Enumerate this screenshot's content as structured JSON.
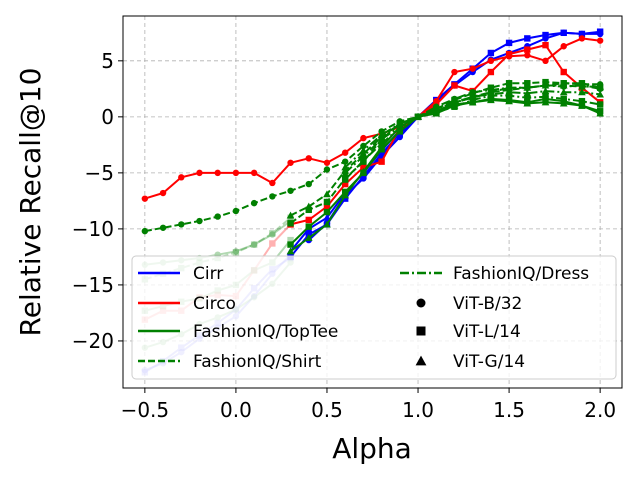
{
  "chart_data": {
    "type": "line",
    "title": "",
    "xlabel": "Alpha",
    "ylabel": "Relative Recall@10",
    "xlim": [
      -0.62,
      2.12
    ],
    "ylim": [
      -24.2,
      9.0
    ],
    "xticks": [
      -0.5,
      0.0,
      0.5,
      1.0,
      1.5,
      2.0
    ],
    "xtick_labels": [
      "−0.5",
      "0.0",
      "0.5",
      "1.0",
      "1.5",
      "2.0"
    ],
    "yticks": [
      -20,
      -15,
      -10,
      -5,
      0,
      5
    ],
    "ytick_labels": [
      "−20",
      "−15",
      "−10",
      "−5",
      "0",
      "5"
    ],
    "grid": true,
    "colors": {
      "Cirr": "#0000ff",
      "Circo": "#ff0000",
      "FashionIQ": "#008000"
    },
    "legend": {
      "placement": "lower-right",
      "entries": [
        {
          "label": "Cirr",
          "kind": "line",
          "color": "#0000ff",
          "dash": "solid"
        },
        {
          "label": "Circo",
          "kind": "line",
          "color": "#ff0000",
          "dash": "solid"
        },
        {
          "label": "FashionIQ/TopTee",
          "kind": "line",
          "color": "#008000",
          "dash": "solid"
        },
        {
          "label": "FashionIQ/Shirt",
          "kind": "line",
          "color": "#008000",
          "dash": "dashed"
        },
        {
          "label": "FashionIQ/Dress",
          "kind": "line",
          "color": "#008000",
          "dash": "dashdot"
        },
        {
          "label": "ViT-B/32",
          "kind": "marker",
          "marker": "circle"
        },
        {
          "label": "ViT-L/14",
          "kind": "marker",
          "marker": "square"
        },
        {
          "label": "ViT-G/14",
          "kind": "marker",
          "marker": "triangle"
        }
      ]
    },
    "series": [
      {
        "name": "Cirr ViT-B/32",
        "color": "#0000ff",
        "dash": "solid",
        "marker": "circle",
        "opacity": 1,
        "x": [
          0.4,
          0.5,
          0.6,
          0.7,
          0.8,
          0.9,
          1.0,
          1.1,
          1.2,
          1.3,
          1.4,
          1.5,
          1.6,
          1.7,
          1.8,
          1.9,
          2.0
        ],
        "y": [
          -11.0,
          -9.5,
          -7.0,
          -5.5,
          -3.5,
          -1.8,
          0.0,
          1.3,
          2.8,
          4.0,
          5.1,
          5.7,
          6.3,
          7.0,
          7.5,
          7.4,
          7.4
        ]
      },
      {
        "name": "Cirr ViT-L/14",
        "color": "#0000ff",
        "dash": "solid",
        "marker": "square",
        "opacity": 1,
        "x": [
          0.3,
          0.4,
          0.5,
          0.6,
          0.7,
          0.8,
          0.9,
          1.0,
          1.1,
          1.2,
          1.3,
          1.4,
          1.5,
          1.6,
          1.7,
          1.8,
          1.9,
          2.0
        ],
        "y": [
          -12.5,
          -10.5,
          -9.6,
          -7.3,
          -5.3,
          -3.3,
          -1.5,
          0.0,
          1.5,
          2.9,
          4.3,
          5.7,
          6.6,
          7.0,
          7.3,
          7.5,
          7.4,
          7.6
        ]
      },
      {
        "name": "Cirr ViT-G/14",
        "color": "#0000ff",
        "dash": "solid",
        "marker": "triangle",
        "opacity": 1,
        "x": [
          0.3,
          0.4,
          0.5,
          0.6,
          0.7,
          0.8,
          0.9,
          1.0
        ],
        "y": [
          -12.0,
          -10.0,
          -9.0,
          -6.8,
          -5.0,
          -3.0,
          -1.2,
          0.0
        ]
      },
      {
        "name": "Cirr faded 1",
        "color": "#0000ff",
        "dash": "solid",
        "marker": "circle",
        "opacity": 0.3,
        "x": [
          -0.5,
          -0.4,
          -0.3,
          -0.2,
          -0.1,
          0.0,
          0.1,
          0.2,
          0.3
        ],
        "y": [
          -22.6,
          -22.0,
          -21.0,
          -19.8,
          -18.8,
          -17.8,
          -16.0,
          -14.0,
          -12.3
        ]
      },
      {
        "name": "Cirr faded 2",
        "color": "#0000ff",
        "dash": "solid",
        "marker": "square",
        "opacity": 0.3,
        "x": [
          -0.5,
          -0.4,
          -0.3,
          -0.2,
          -0.1,
          0.0,
          0.1,
          0.2,
          0.3
        ],
        "y": [
          -22.8,
          -21.8,
          -20.6,
          -19.5,
          -18.4,
          -17.2,
          -15.3,
          -13.6,
          -12.6
        ]
      },
      {
        "name": "Circo ViT-B/32",
        "color": "#ff0000",
        "dash": "solid",
        "marker": "circle",
        "opacity": 1,
        "x": [
          -0.5,
          -0.4,
          -0.3,
          -0.2,
          -0.1,
          0.0,
          0.1,
          0.2,
          0.3,
          0.4,
          0.5,
          0.6,
          0.7,
          0.8,
          0.9,
          1.0,
          1.1,
          1.2,
          1.3,
          1.4,
          1.5,
          1.6,
          1.7,
          1.8,
          1.9,
          2.0
        ],
        "y": [
          -7.3,
          -6.8,
          -5.4,
          -5.0,
          -5.0,
          -5.0,
          -5.0,
          -5.9,
          -4.1,
          -3.7,
          -4.1,
          -3.2,
          -1.9,
          -1.5,
          -0.9,
          0.0,
          1.4,
          4.0,
          4.3,
          5.0,
          5.4,
          5.5,
          5.0,
          6.3,
          7.0,
          6.8
        ]
      },
      {
        "name": "Circo ViT-L/14",
        "color": "#ff0000",
        "dash": "solid",
        "marker": "square",
        "opacity": 1,
        "x": [
          0.3,
          0.4,
          0.5,
          0.6,
          0.7,
          0.8,
          0.9,
          1.0,
          1.1,
          1.2,
          1.3,
          1.4,
          1.5,
          1.6,
          1.7,
          1.8,
          1.9,
          2.0
        ],
        "y": [
          -9.6,
          -9.2,
          -8.0,
          -6.0,
          -4.5,
          -4.0,
          -1.0,
          0.0,
          1.1,
          2.8,
          2.3,
          4.0,
          5.6,
          6.0,
          6.4,
          4.0,
          2.6,
          1.3
        ]
      },
      {
        "name": "Circo faded",
        "color": "#ff0000",
        "dash": "solid",
        "marker": "square",
        "opacity": 0.3,
        "x": [
          -0.5,
          -0.4,
          -0.3,
          -0.2,
          -0.1,
          0.0,
          0.1,
          0.2,
          0.3
        ],
        "y": [
          -18.1,
          -17.3,
          -17.3,
          -16.1,
          -15.9,
          -16.0,
          -13.7,
          -11.3,
          -9.6
        ]
      },
      {
        "name": "FashionIQ/TopTee ViT-L/14",
        "color": "#008000",
        "dash": "solid",
        "marker": "square",
        "opacity": 1,
        "x": [
          0.3,
          0.4,
          0.5,
          0.6,
          0.7,
          0.8,
          0.9,
          1.0,
          1.1,
          1.2,
          1.3,
          1.4,
          1.5,
          1.6,
          1.7,
          1.8,
          1.9,
          2.0
        ],
        "y": [
          -11.4,
          -9.8,
          -8.5,
          -6.7,
          -5.0,
          -2.9,
          -1.3,
          0.0,
          0.5,
          1.1,
          1.3,
          1.6,
          1.5,
          1.3,
          1.6,
          1.4,
          1.0,
          0.5
        ]
      },
      {
        "name": "FashionIQ/TopTee ViT-G/14",
        "color": "#008000",
        "dash": "solid",
        "marker": "triangle",
        "opacity": 1,
        "x": [
          0.3,
          0.4,
          0.5,
          0.6,
          0.7,
          0.8,
          0.9,
          1.0,
          1.1,
          1.2,
          1.3,
          1.4,
          1.5,
          1.6,
          1.7,
          1.8,
          1.9,
          2.0
        ],
        "y": [
          -12.0,
          -10.8,
          -9.6,
          -7.0,
          -4.9,
          -2.7,
          -0.9,
          0.0,
          0.3,
          1.0,
          1.3,
          1.5,
          1.4,
          1.2,
          1.3,
          1.2,
          1.0,
          0.3
        ]
      },
      {
        "name": "FashionIQ/Shirt ViT-B/32",
        "color": "#008000",
        "dash": "dashed",
        "marker": "circle",
        "opacity": 1,
        "x": [
          -0.5,
          -0.4,
          -0.3,
          -0.2,
          -0.1,
          0.0,
          0.1,
          0.2,
          0.3,
          0.4,
          0.5,
          0.6,
          0.7,
          0.8,
          0.9,
          1.0,
          1.1,
          1.2,
          1.3,
          1.4,
          1.5,
          1.6,
          1.7,
          1.8,
          1.9,
          2.0
        ],
        "y": [
          -10.2,
          -9.9,
          -9.6,
          -9.3,
          -8.9,
          -8.4,
          -7.7,
          -7.1,
          -6.6,
          -6.0,
          -4.7,
          -4.0,
          -2.6,
          -1.3,
          -0.4,
          0.0,
          0.7,
          1.3,
          1.7,
          2.2,
          2.4,
          2.6,
          2.8,
          3.0,
          2.9,
          2.9
        ]
      },
      {
        "name": "FashionIQ/Shirt ViT-L/14",
        "color": "#008000",
        "dash": "dashed",
        "marker": "square",
        "opacity": 1,
        "x": [
          0.3,
          0.4,
          0.5,
          0.6,
          0.7,
          0.8,
          0.9,
          1.0,
          1.1,
          1.2,
          1.3,
          1.4,
          1.5,
          1.6,
          1.7,
          1.8,
          1.9,
          2.0
        ],
        "y": [
          -9.5,
          -8.3,
          -7.6,
          -5.5,
          -4.0,
          -2.0,
          -0.6,
          0.0,
          0.7,
          1.5,
          2.1,
          2.6,
          3.0,
          3.0,
          3.1,
          3.0,
          3.0,
          2.6
        ]
      },
      {
        "name": "FashionIQ/Shirt ViT-G/14",
        "color": "#008000",
        "dash": "dashed",
        "marker": "triangle",
        "opacity": 1,
        "x": [
          0.3,
          0.4,
          0.5,
          0.6,
          0.7,
          0.8,
          0.9,
          1.0,
          1.1,
          1.2,
          1.3,
          1.4,
          1.5,
          1.6,
          1.7,
          1.8,
          1.9,
          2.0
        ],
        "y": [
          -8.8,
          -8.0,
          -6.9,
          -4.8,
          -3.3,
          -1.8,
          -0.6,
          0.0,
          0.5,
          1.2,
          1.8,
          2.2,
          2.6,
          2.6,
          2.8,
          2.8,
          2.7,
          2.7
        ]
      },
      {
        "name": "FashionIQ/Dress ViT-B/32",
        "color": "#008000",
        "dash": "dashdot",
        "marker": "circle",
        "opacity": 1,
        "x": [
          0.6,
          0.7,
          0.8,
          0.9,
          1.0,
          1.1,
          1.2,
          1.3,
          1.4,
          1.5,
          1.6,
          1.7,
          1.8,
          1.9,
          2.0
        ],
        "y": [
          -5.0,
          -3.5,
          -2.0,
          -0.9,
          0.0,
          0.9,
          1.6,
          2.2,
          2.4,
          2.6,
          2.6,
          2.8,
          2.7,
          2.8,
          2.5
        ]
      },
      {
        "name": "FashionIQ/Dress ViT-L/14",
        "color": "#008000",
        "dash": "dashdot",
        "marker": "square",
        "opacity": 1,
        "x": [
          0.6,
          0.7,
          0.8,
          0.9,
          1.0,
          1.1,
          1.2,
          1.3,
          1.4,
          1.5,
          1.6,
          1.7,
          1.8,
          1.9,
          2.0
        ],
        "y": [
          -5.6,
          -3.9,
          -2.4,
          -1.0,
          0.0,
          0.4,
          0.9,
          1.5,
          1.9,
          1.9,
          1.7,
          1.8,
          1.6,
          1.4,
          1.1
        ]
      },
      {
        "name": "FashionIQ/Dress ViT-G/14",
        "color": "#008000",
        "dash": "dashdot",
        "marker": "triangle",
        "opacity": 1,
        "x": [
          0.6,
          0.7,
          0.8,
          0.9,
          1.0,
          1.1,
          1.2,
          1.3,
          1.4,
          1.5,
          1.6,
          1.7,
          1.8,
          1.9,
          2.0
        ],
        "y": [
          -4.5,
          -3.0,
          -1.6,
          -0.6,
          0.0,
          0.6,
          1.3,
          1.8,
          2.0,
          2.2,
          2.1,
          2.3,
          2.2,
          2.2,
          2.0
        ]
      },
      {
        "name": "FashionIQ faded 1",
        "color": "#008000",
        "dash": "solid",
        "marker": "circle",
        "opacity": 0.3,
        "x": [
          -0.5,
          -0.4,
          -0.3,
          -0.2,
          -0.1,
          0.0,
          0.1,
          0.2,
          0.3
        ],
        "y": [
          -20.6,
          -20.1,
          -19.4,
          -18.5,
          -17.9,
          -17.2,
          -16.1,
          -14.9,
          -13.0
        ]
      },
      {
        "name": "FashionIQ faded 2",
        "color": "#008000",
        "dash": "solid",
        "marker": "square",
        "opacity": 0.3,
        "x": [
          -0.5,
          -0.4,
          -0.3,
          -0.2,
          -0.1,
          0.0,
          0.1,
          0.2,
          0.3
        ],
        "y": [
          -17.3,
          -16.9,
          -16.5,
          -16.2,
          -15.5,
          -15.0,
          -13.7,
          -13.0,
          -11.0
        ]
      },
      {
        "name": "FashionIQ faded 3",
        "color": "#008000",
        "dash": "solid",
        "marker": "circle",
        "opacity": 0.3,
        "x": [
          -0.5,
          -0.4,
          -0.3,
          -0.2,
          -0.1,
          0.0,
          0.1,
          0.2,
          0.3
        ],
        "y": [
          -13.2,
          -13.0,
          -12.8,
          -12.6,
          -12.3,
          -12.0,
          -11.4,
          -10.5,
          -9.3
        ]
      },
      {
        "name": "FashionIQ faded 4",
        "color": "#008000",
        "dash": "dashed",
        "marker": "square",
        "opacity": 0.3,
        "x": [
          -0.5,
          -0.4,
          -0.3,
          -0.2,
          -0.1,
          0.0,
          0.1,
          0.2,
          0.3
        ],
        "y": [
          -14.5,
          -14.0,
          -13.5,
          -13.0,
          -12.6,
          -12.1,
          -11.4,
          -10.4,
          -9.0
        ]
      }
    ]
  }
}
